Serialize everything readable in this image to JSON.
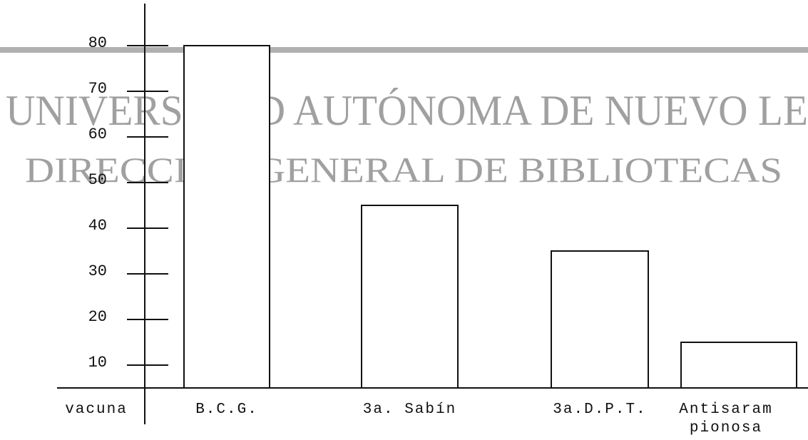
{
  "chart_data": {
    "type": "bar",
    "x_label": "vacuna",
    "categories": [
      "B.C.G.",
      "3a. Sabín",
      "3a.D.P.T.",
      "Antisaram\npionosa"
    ],
    "values": [
      80,
      45,
      35,
      15
    ],
    "color": "#ffffff",
    "ylim": [
      5,
      85
    ],
    "yticks": [
      10,
      20,
      30,
      40,
      50,
      60,
      70,
      80
    ],
    "watermark": [
      "UNIVERSIDAD AUTÓNOMA DE NUEVO LE",
      "DIRECCIÓN GENERAL DE BIBLIOTECAS"
    ]
  }
}
